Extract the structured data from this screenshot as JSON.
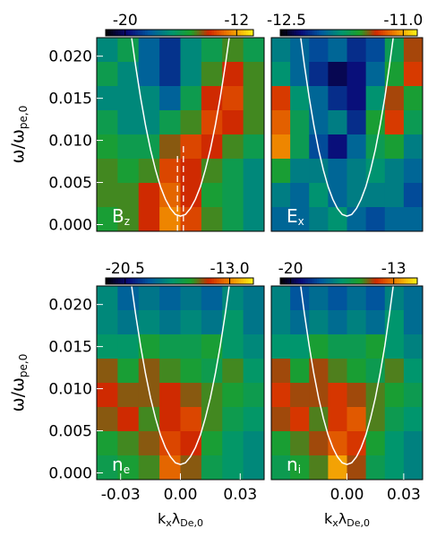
{
  "chart_data": [
    {
      "type": "heatmap",
      "label": {
        "main": "B",
        "sub": "z"
      },
      "y_label": {
        "main": "ω/ω",
        "sub": "pe,0"
      },
      "xlim": [
        -0.042,
        0.042
      ],
      "ylim": [
        -0.0008,
        0.0222
      ],
      "yticks": [
        {
          "value": 0,
          "label": "0.000"
        },
        {
          "value": 0.005,
          "label": "0.005"
        },
        {
          "value": 0.01,
          "label": "0.010"
        },
        {
          "value": 0.015,
          "label": "0.015"
        },
        {
          "value": 0.02,
          "label": "0.020"
        }
      ],
      "zlim": [
        -21.4,
        -10.8
      ],
      "zticks": [
        -20,
        -12
      ],
      "z": [
        [
          -17,
          -16,
          -18,
          -19,
          -17,
          -16,
          -15,
          -16
        ],
        [
          -16,
          -17,
          -18,
          -19,
          -17,
          -15,
          -14,
          -15
        ],
        [
          -17,
          -17,
          -17,
          -18,
          -16,
          -14,
          -13.5,
          -15
        ],
        [
          -16,
          -17,
          -17,
          -16,
          -15,
          -13.5,
          -14,
          -15
        ],
        [
          -15.5,
          -16,
          -16,
          -14.5,
          -13.5,
          -14,
          -15,
          -16
        ],
        [
          -15,
          -15.5,
          -15,
          -13.5,
          -14,
          -15,
          -16,
          -17
        ],
        [
          -15,
          -15,
          -14,
          -13,
          -14,
          -15.5,
          -16,
          -17
        ],
        [
          -15.5,
          -15,
          -14,
          -12.5,
          -13.5,
          -15,
          -16,
          -17
        ]
      ],
      "curve": {
        "x": [
          -0.025,
          -0.0225,
          -0.02,
          -0.0175,
          -0.015,
          -0.0125,
          -0.01,
          -0.0075,
          -0.005,
          -0.0025,
          0,
          0.0025,
          0.005,
          0.0075,
          0.01,
          0.0125,
          0.015,
          0.0175,
          0.02,
          0.0225,
          0.025
        ],
        "y": [
          0.0231,
          0.0189,
          0.0151,
          0.0118,
          0.0089,
          0.0065,
          0.0045,
          0.003,
          0.0019,
          0.0012,
          0.001,
          0.0012,
          0.0019,
          0.003,
          0.0045,
          0.0065,
          0.0089,
          0.0118,
          0.0151,
          0.0189,
          0.0231
        ]
      },
      "dashed_lines": [
        {
          "x": -0.0015,
          "y": [
            -0.0008,
            0.0085
          ]
        },
        {
          "x": 0.0015,
          "y": [
            -0.0008,
            0.0096
          ]
        }
      ]
    },
    {
      "type": "heatmap",
      "label": {
        "main": "E",
        "sub": "x"
      },
      "xlim": [
        -0.04,
        0.04
      ],
      "ylim": [
        -0.0008,
        0.0222
      ],
      "zlim": [
        -12.58,
        -10.82
      ],
      "zticks": [
        -12.5,
        {
          "value": -11,
          "label": "-11.0"
        }
      ],
      "z": [
        [
          -11.9,
          -12.0,
          -12.1,
          -12.0,
          -12.2,
          -12.1,
          -11.7,
          -11.4
        ],
        [
          -11.8,
          -12.0,
          -12.2,
          -12.4,
          -12.3,
          -12.0,
          -11.6,
          -11.3
        ],
        [
          -11.3,
          -11.8,
          -12.0,
          -12.2,
          -12.3,
          -11.8,
          -11.4,
          -11.6
        ],
        [
          -11.2,
          -11.7,
          -12.0,
          -11.9,
          -12.2,
          -11.6,
          -11.3,
          -11.7
        ],
        [
          -11.1,
          -11.7,
          -12.1,
          -12.3,
          -12.0,
          -11.7,
          -11.6,
          -11.9
        ],
        [
          -11.6,
          -11.9,
          -11.9,
          -12.0,
          -11.9,
          -11.8,
          -11.9,
          -12.0
        ],
        [
          -11.9,
          -12.0,
          -11.8,
          -12.0,
          -11.9,
          -11.9,
          -11.9,
          -12.1
        ],
        [
          -12.0,
          -12.0,
          -11.9,
          -11.8,
          -12.0,
          -12.1,
          -12.0,
          -12.0
        ]
      ],
      "curve": {
        "x": [
          -0.025,
          -0.0225,
          -0.02,
          -0.0175,
          -0.015,
          -0.0125,
          -0.01,
          -0.0075,
          -0.005,
          -0.0025,
          0,
          0.0025,
          0.005,
          0.0075,
          0.01,
          0.0125,
          0.015,
          0.0175,
          0.02,
          0.0225,
          0.025
        ],
        "y": [
          0.0231,
          0.0189,
          0.0151,
          0.0118,
          0.0089,
          0.0065,
          0.0045,
          0.003,
          0.0019,
          0.0012,
          0.001,
          0.0012,
          0.0019,
          0.003,
          0.0045,
          0.0065,
          0.0089,
          0.0118,
          0.0151,
          0.0189,
          0.0231
        ]
      }
    },
    {
      "type": "heatmap",
      "label": {
        "main": "n",
        "sub": "e"
      },
      "y_label": {
        "main": "ω/ω",
        "sub": "pe,0"
      },
      "x_label": {
        "main": "k",
        "sub": "x",
        "main2": "λ",
        "sub2": "De,0"
      },
      "xlim": [
        -0.042,
        0.042
      ],
      "ylim": [
        -0.0008,
        0.0222
      ],
      "xticks": [
        {
          "value": -0.03,
          "label": "-0.03"
        },
        {
          "value": 0,
          "label": "0.00"
        },
        {
          "value": 0.03,
          "label": "0.03"
        }
      ],
      "yticks": [
        {
          "value": 0,
          "label": "0.000"
        },
        {
          "value": 0.005,
          "label": "0.005"
        },
        {
          "value": 0.01,
          "label": "0.010"
        },
        {
          "value": 0.015,
          "label": "0.015"
        },
        {
          "value": 0.02,
          "label": "0.020"
        }
      ],
      "zlim": [
        -21.9,
        -11.3
      ],
      "zticks": [
        -20.5,
        {
          "value": -13,
          "label": "-13.0"
        }
      ],
      "z": [
        [
          -17.5,
          -18.5,
          -18,
          -18.5,
          -18,
          -18.5,
          -17.5,
          -18
        ],
        [
          -17.5,
          -18,
          -17.5,
          -18,
          -17.5,
          -18,
          -17,
          -18
        ],
        [
          -17,
          -17,
          -16,
          -16.5,
          -16.5,
          -16,
          -17,
          -17.5
        ],
        [
          -15,
          -16,
          -15,
          -15.5,
          -16,
          -16.5,
          -15.5,
          -17
        ],
        [
          -14.5,
          -15,
          -15,
          -14.5,
          -15,
          -15.5,
          -16,
          -16.5
        ],
        [
          -15,
          -14.5,
          -15.5,
          -14.5,
          -14,
          -15.5,
          -16.5,
          -17
        ],
        [
          -16,
          -15.5,
          -15,
          -14,
          -14.5,
          -16,
          -17,
          -17.5
        ],
        [
          -16.5,
          -16,
          -15.5,
          -13.5,
          -15,
          -16.5,
          -17,
          -17.5
        ]
      ],
      "curve": {
        "x": [
          -0.025,
          -0.0225,
          -0.02,
          -0.0175,
          -0.015,
          -0.0125,
          -0.01,
          -0.0075,
          -0.005,
          -0.0025,
          0,
          0.0025,
          0.005,
          0.0075,
          0.01,
          0.0125,
          0.015,
          0.0175,
          0.02,
          0.0225,
          0.025
        ],
        "y": [
          0.0231,
          0.0189,
          0.0151,
          0.0118,
          0.0089,
          0.0065,
          0.0045,
          0.003,
          0.0019,
          0.0012,
          0.001,
          0.0012,
          0.0019,
          0.003,
          0.0045,
          0.0065,
          0.0089,
          0.0118,
          0.0151,
          0.0189,
          0.0231
        ]
      }
    },
    {
      "type": "heatmap",
      "label": {
        "main": "n",
        "sub": "i"
      },
      "x_label": {
        "main": "k",
        "sub": "x",
        "main2": "λ",
        "sub2": "De,0"
      },
      "xlim": [
        -0.04,
        0.04
      ],
      "ylim": [
        -0.0008,
        0.0222
      ],
      "xticks": [
        {
          "value": 0,
          "label": "0.00"
        },
        {
          "value": 0.03,
          "label": "0.03"
        }
      ],
      "zlim": [
        -20.7,
        -11.4
      ],
      "zticks": [
        -20,
        -13
      ],
      "z": [
        [
          -17,
          -18,
          -17.5,
          -18,
          -17.5,
          -18,
          -17,
          -17.5
        ],
        [
          -17,
          -17.5,
          -17,
          -17.5,
          -17,
          -17.5,
          -16.5,
          -17.5
        ],
        [
          -16.5,
          -16.5,
          -15.5,
          -16,
          -16,
          -15.5,
          -16.5,
          -17
        ],
        [
          -14.5,
          -15.5,
          -14.5,
          -15,
          -15.5,
          -16,
          -15,
          -16.5
        ],
        [
          -14,
          -14.5,
          -14.5,
          -14,
          -14.5,
          -15,
          -15.5,
          -16
        ],
        [
          -14.5,
          -14,
          -15,
          -14,
          -13.5,
          -15,
          -16,
          -16.5
        ],
        [
          -15.5,
          -15,
          -14.5,
          -13.5,
          -14,
          -15.5,
          -16.5,
          -17
        ],
        [
          -16,
          -15.5,
          -15,
          -12.5,
          -14.5,
          -16,
          -16.5,
          -17
        ]
      ],
      "curve": {
        "x": [
          -0.025,
          -0.0225,
          -0.02,
          -0.0175,
          -0.015,
          -0.0125,
          -0.01,
          -0.0075,
          -0.005,
          -0.0025,
          0,
          0.0025,
          0.005,
          0.0075,
          0.01,
          0.0125,
          0.015,
          0.0175,
          0.02,
          0.0225,
          0.025
        ],
        "y": [
          0.0231,
          0.0189,
          0.0151,
          0.0118,
          0.0089,
          0.0065,
          0.0045,
          0.003,
          0.0019,
          0.0012,
          0.001,
          0.0012,
          0.0019,
          0.003,
          0.0045,
          0.0065,
          0.0089,
          0.0118,
          0.0151,
          0.0189,
          0.0231
        ]
      }
    }
  ]
}
